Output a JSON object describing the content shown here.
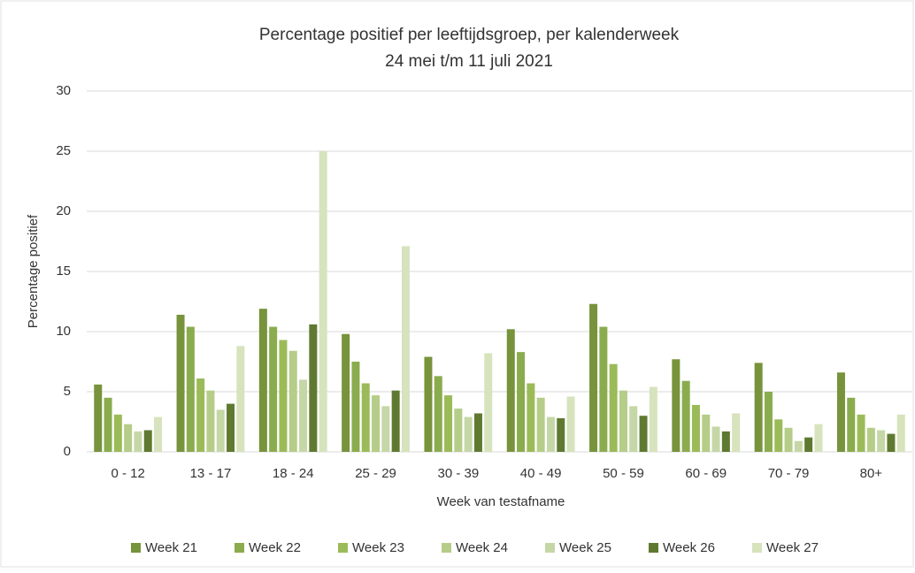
{
  "chart_data": {
    "type": "bar",
    "title": "Percentage positief per leeftijdsgroep, per kalenderweek",
    "subtitle": "24 mei t/m 11 juli 2021",
    "x_label": "Week van testafname",
    "y_label": "Percentage positief",
    "categories": [
      "0 - 12",
      "13 - 17",
      "18 - 24",
      "25 - 29",
      "30 - 39",
      "40 - 49",
      "50 - 59",
      "60 - 69",
      "70 - 79",
      "80+"
    ],
    "series": [
      {
        "name": "Week 21",
        "color": "#77933c",
        "values": [
          5.6,
          11.4,
          11.9,
          9.8,
          7.9,
          10.2,
          12.3,
          7.7,
          7.4,
          6.6
        ]
      },
      {
        "name": "Week 22",
        "color": "#8aac4e",
        "values": [
          4.5,
          10.4,
          10.4,
          7.5,
          6.3,
          8.3,
          10.4,
          5.9,
          5.0,
          4.5
        ]
      },
      {
        "name": "Week 23",
        "color": "#9bbb59",
        "values": [
          3.1,
          6.1,
          9.3,
          5.7,
          4.7,
          5.7,
          7.3,
          3.9,
          2.7,
          3.1
        ]
      },
      {
        "name": "Week 24",
        "color": "#b5cd88",
        "values": [
          2.3,
          5.1,
          8.4,
          4.7,
          3.6,
          4.5,
          5.1,
          3.1,
          2.0,
          2.0
        ]
      },
      {
        "name": "Week 25",
        "color": "#c6d7a7",
        "values": [
          1.7,
          3.5,
          6.0,
          3.8,
          2.9,
          2.9,
          3.8,
          2.1,
          0.9,
          1.8
        ]
      },
      {
        "name": "Week 26",
        "color": "#5f7a30",
        "values": [
          1.8,
          4.0,
          10.6,
          5.1,
          3.2,
          2.8,
          3.0,
          1.7,
          1.2,
          1.5
        ]
      },
      {
        "name": "Week 27",
        "color": "#d6e3bc",
        "values": [
          2.9,
          8.8,
          25.0,
          17.1,
          8.2,
          4.6,
          5.4,
          3.2,
          2.3,
          3.1
        ]
      }
    ],
    "ylim": [
      0,
      30
    ],
    "yticks": [
      0,
      5,
      10,
      15,
      20,
      25,
      30
    ],
    "grid": true,
    "legend": "bottom"
  }
}
